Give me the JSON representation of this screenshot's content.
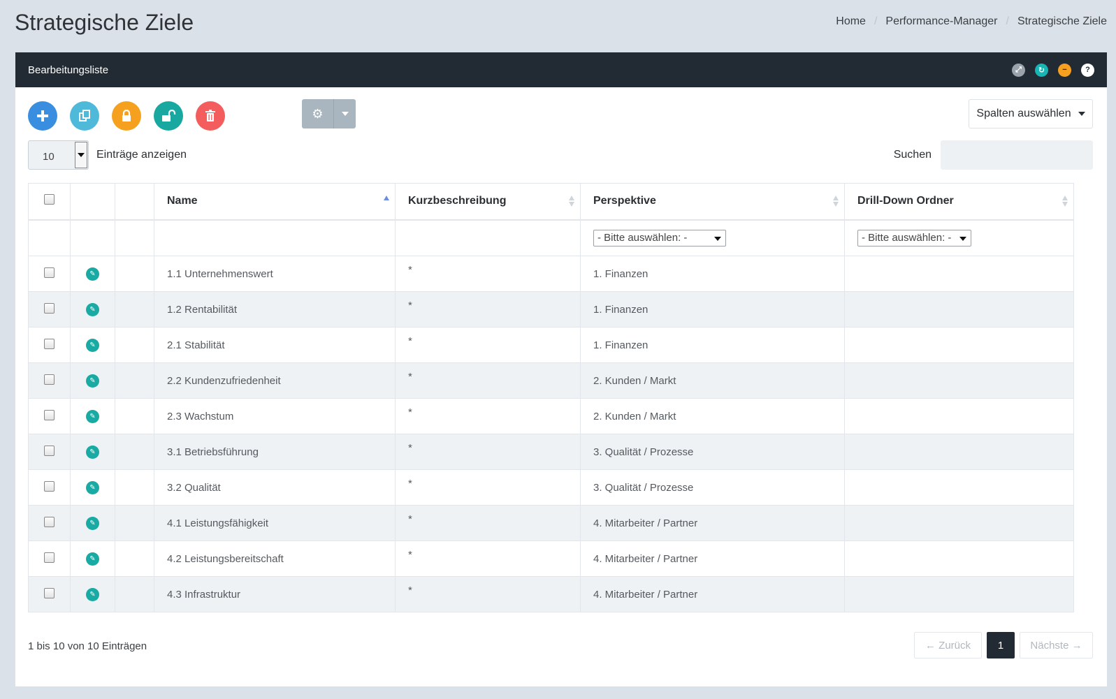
{
  "page": {
    "title": "Strategische Ziele"
  },
  "breadcrumb": [
    "Home",
    "Performance-Manager",
    "Strategische Ziele"
  ],
  "panel": {
    "title": "Bearbeitungsliste"
  },
  "toolbar": {
    "columns_label": "Spalten auswählen"
  },
  "length": {
    "value": "10",
    "label": "Einträge anzeigen"
  },
  "search": {
    "label": "Suchen",
    "placeholder": ""
  },
  "table": {
    "headers": [
      "Name",
      "Kurzbeschreibung",
      "Perspektive",
      "Drill-Down Ordner"
    ],
    "filter_placeholder": "- Bitte auswählen: -",
    "rows": [
      {
        "name": "1.1 Unternehmenswert",
        "desc": "*",
        "perspective": "1. Finanzen",
        "drill": ""
      },
      {
        "name": "1.2 Rentabilität",
        "desc": "*",
        "perspective": "1. Finanzen",
        "drill": ""
      },
      {
        "name": "2.1 Stabilität",
        "desc": "*",
        "perspective": "1. Finanzen",
        "drill": ""
      },
      {
        "name": "2.2 Kundenzufriedenheit",
        "desc": "*",
        "perspective": "2. Kunden / Markt",
        "drill": ""
      },
      {
        "name": "2.3 Wachstum",
        "desc": "*",
        "perspective": "2. Kunden / Markt",
        "drill": ""
      },
      {
        "name": "3.1 Betriebsführung",
        "desc": "*",
        "perspective": "3. Qualität / Prozesse",
        "drill": ""
      },
      {
        "name": "3.2 Qualität",
        "desc": "*",
        "perspective": "3. Qualität / Prozesse",
        "drill": ""
      },
      {
        "name": "4.1 Leistungsfähigkeit",
        "desc": "*",
        "perspective": "4. Mitarbeiter / Partner",
        "drill": ""
      },
      {
        "name": "4.2 Leistungsbereitschaft",
        "desc": "*",
        "perspective": "4. Mitarbeiter / Partner",
        "drill": ""
      },
      {
        "name": "4.3 Infrastruktur",
        "desc": "*",
        "perspective": "4. Mitarbeiter / Partner",
        "drill": ""
      }
    ]
  },
  "footer": {
    "info": "1 bis 10 von 10 Einträgen",
    "prev": "← Zurück",
    "page": "1",
    "next": "Nächste →"
  },
  "colors": {
    "header_bg": "#222a33",
    "accent_teal": "#18aaa3",
    "add_blue": "#3a8ee0",
    "delete_red": "#f35d5d",
    "lock_orange": "#f5a11f"
  }
}
